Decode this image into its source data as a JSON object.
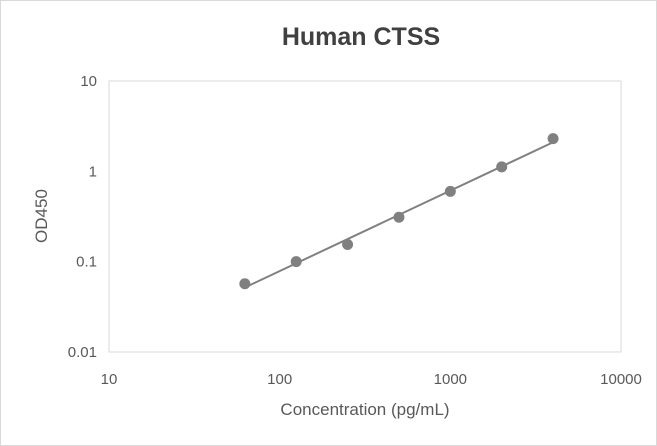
{
  "chart_data": {
    "type": "scatter",
    "title": "Human CTSS",
    "xlabel": "Concentration (pg/mL)",
    "ylabel": "OD450",
    "x_scale": "log",
    "y_scale": "log",
    "xlim": [
      10,
      10000
    ],
    "ylim": [
      0.01,
      10
    ],
    "x_ticks": [
      "10",
      "100",
      "1000",
      "10000"
    ],
    "y_ticks": [
      "10",
      "1",
      "0.1",
      "0.01"
    ],
    "grid": false,
    "legend": "none",
    "trendline": "power",
    "marker_color": "#808080",
    "line_color": "#808080",
    "x": [
      62.5,
      125,
      250,
      500,
      1000,
      2000,
      4000
    ],
    "y": [
      0.057,
      0.1,
      0.155,
      0.31,
      0.6,
      1.12,
      2.3
    ]
  }
}
